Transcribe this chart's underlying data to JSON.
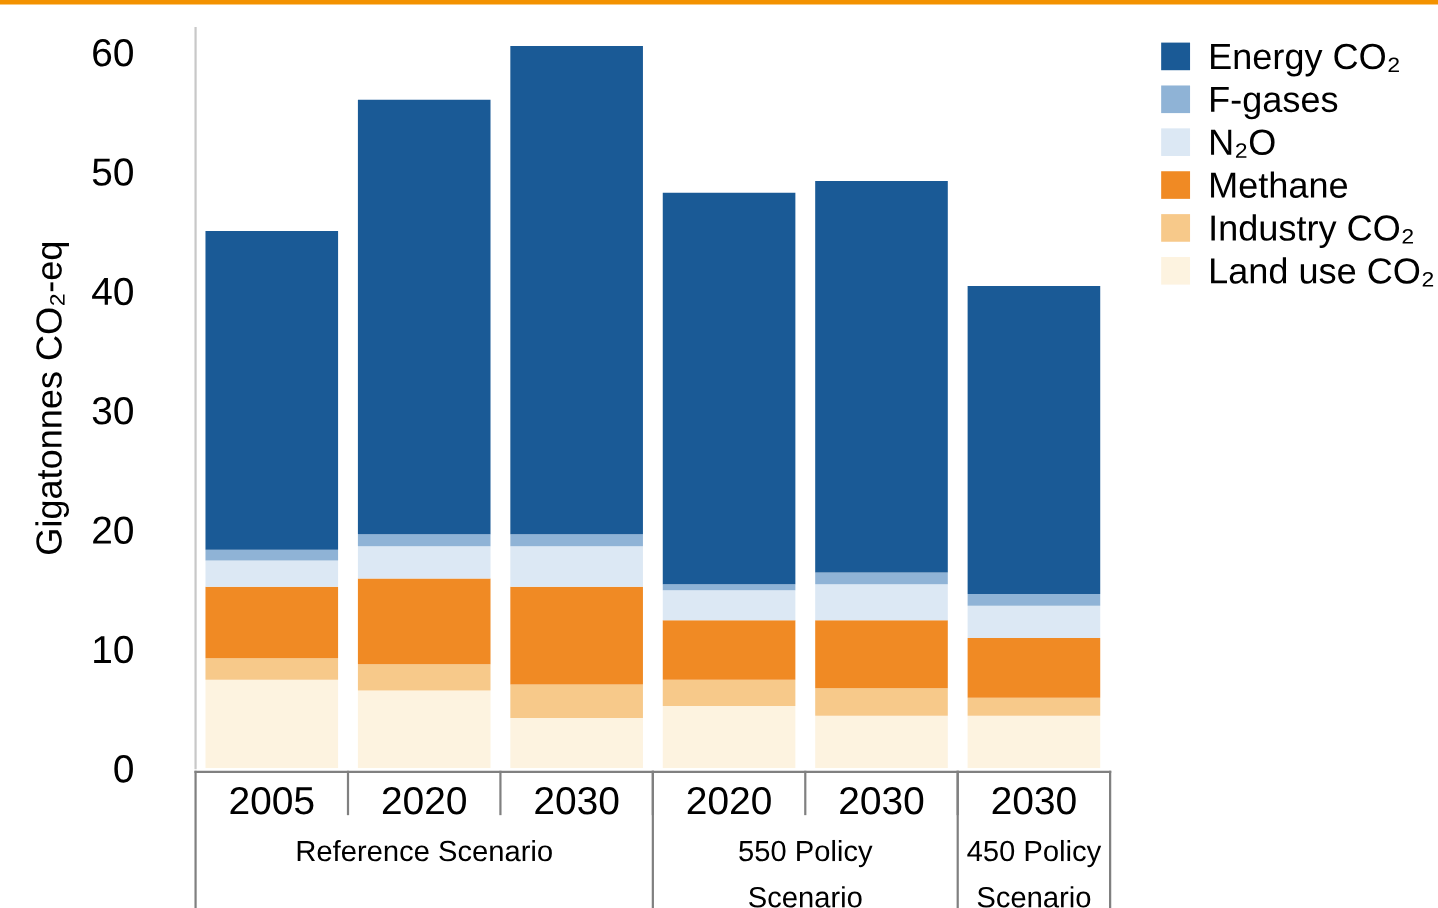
{
  "chart_data": {
    "type": "bar",
    "stacked": true,
    "ylabel": "Gigatonnes CO₂-eq",
    "categories": [
      "2005",
      "2020",
      "2030",
      "2020",
      "2030",
      "2030"
    ],
    "series": [
      {
        "name": "Land use CO₂",
        "color": "#fdf3e0",
        "values": [
          7.4,
          6.5,
          4.2,
          5.2,
          4.4,
          4.4
        ]
      },
      {
        "name": "Industry CO₂",
        "color": "#f7c98a",
        "values": [
          1.8,
          2.2,
          2.8,
          2.2,
          2.3,
          1.5
        ]
      },
      {
        "name": "Methane",
        "color": "#f08a24",
        "values": [
          6.0,
          7.2,
          8.2,
          5.0,
          5.7,
          5.0
        ]
      },
      {
        "name": "N₂O",
        "color": "#dce8f4",
        "values": [
          2.2,
          2.7,
          3.4,
          2.5,
          3.0,
          2.7
        ]
      },
      {
        "name": "F-gases",
        "color": "#8fb3d6",
        "values": [
          0.9,
          1.0,
          1.0,
          0.5,
          1.0,
          1.0
        ]
      },
      {
        "name": "Energy CO₂",
        "color": "#1a5a96",
        "values": [
          26.7,
          36.4,
          40.9,
          32.8,
          32.8,
          25.8
        ]
      }
    ],
    "annotations": [
      "Reference Scenario",
      "550 Policy\nScenario",
      "450 Policy\nScenario"
    ],
    "ylim": [
      0,
      62
    ],
    "yticks": [
      0,
      10,
      20,
      30,
      40,
      50,
      60
    ],
    "grid": false,
    "legend": "top right"
  }
}
